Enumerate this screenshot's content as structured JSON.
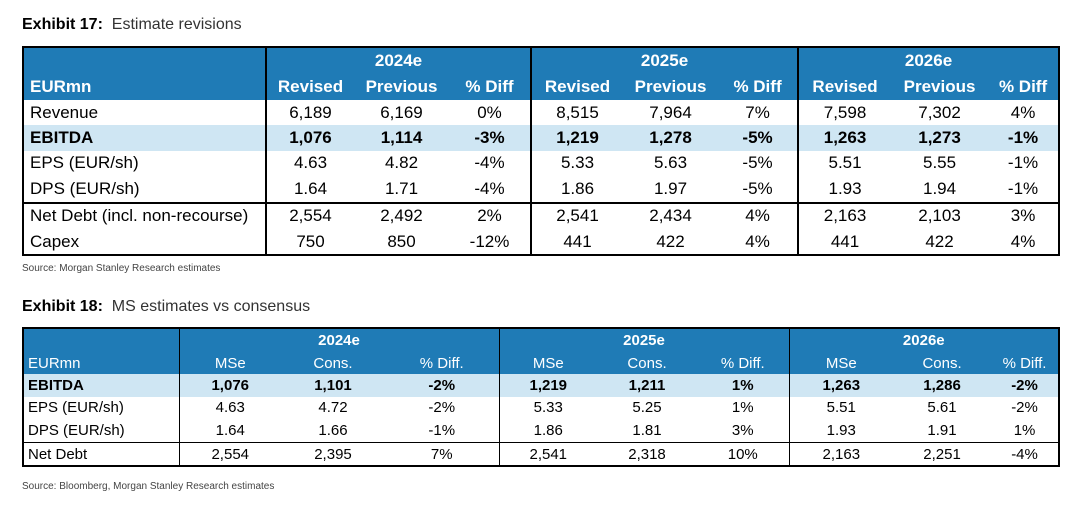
{
  "exhibit1": {
    "number": "Exhibit 17:",
    "title": "Estimate revisions",
    "years": [
      "2024e",
      "2025e",
      "2026e"
    ],
    "label_header": "EURmn",
    "columns": [
      "Revised",
      "Previous",
      "% Diff",
      "Revised",
      "Previous",
      "% Diff",
      "Revised",
      "Previous",
      "% Diff"
    ],
    "rows": [
      {
        "label": "Revenue",
        "values": [
          "6,189",
          "6,169",
          "0%",
          "8,515",
          "7,964",
          "7%",
          "7,598",
          "7,302",
          "4%"
        ]
      },
      {
        "label": "EBITDA",
        "values": [
          "1,076",
          "1,114",
          "-3%",
          "1,219",
          "1,278",
          "-5%",
          "1,263",
          "1,273",
          "-1%"
        ]
      },
      {
        "label": "EPS (EUR/sh)",
        "values": [
          "4.63",
          "4.82",
          "-4%",
          "5.33",
          "5.63",
          "-5%",
          "5.51",
          "5.55",
          "-1%"
        ]
      },
      {
        "label": "DPS (EUR/sh)",
        "values": [
          "1.64",
          "1.71",
          "-4%",
          "1.86",
          "1.97",
          "-5%",
          "1.93",
          "1.94",
          "-1%"
        ]
      },
      {
        "label": "Net Debt (incl. non-recourse)",
        "values": [
          "2,554",
          "2,492",
          "2%",
          "2,541",
          "2,434",
          "4%",
          "2,163",
          "2,103",
          "3%"
        ]
      },
      {
        "label": "Capex",
        "values": [
          "750",
          "850",
          "-12%",
          "441",
          "422",
          "4%",
          "441",
          "422",
          "4%"
        ]
      }
    ],
    "source": "Source: Morgan Stanley Research estimates"
  },
  "exhibit2": {
    "number": "Exhibit 18:",
    "title": "MS estimates vs consensus",
    "years": [
      "2024e",
      "2025e",
      "2026e"
    ],
    "label_header": "EURmn",
    "columns": [
      "MSe",
      "Cons.",
      "% Diff.",
      "MSe",
      "Cons.",
      "% Diff.",
      "MSe",
      "Cons.",
      "% Diff."
    ],
    "rows": [
      {
        "label": "EBITDA",
        "values": [
          "1,076",
          "1,101",
          "-2%",
          "1,219",
          "1,211",
          "1%",
          "1,263",
          "1,286",
          "-2%"
        ]
      },
      {
        "label": "EPS (EUR/sh)",
        "values": [
          "4.63",
          "4.72",
          "-2%",
          "5.33",
          "5.25",
          "1%",
          "5.51",
          "5.61",
          "-2%"
        ]
      },
      {
        "label": "DPS (EUR/sh)",
        "values": [
          "1.64",
          "1.66",
          "-1%",
          "1.86",
          "1.81",
          "3%",
          "1.93",
          "1.91",
          "1%"
        ]
      },
      {
        "label": "Net Debt",
        "values": [
          "2,554",
          "2,395",
          "7%",
          "2,541",
          "2,318",
          "10%",
          "2,163",
          "2,251",
          "-4%"
        ]
      }
    ],
    "source": "Source: Bloomberg, Morgan Stanley Research estimates"
  },
  "colors": {
    "header_blue": "#1f7bb6",
    "highlight_row": "#cfe6f3"
  }
}
